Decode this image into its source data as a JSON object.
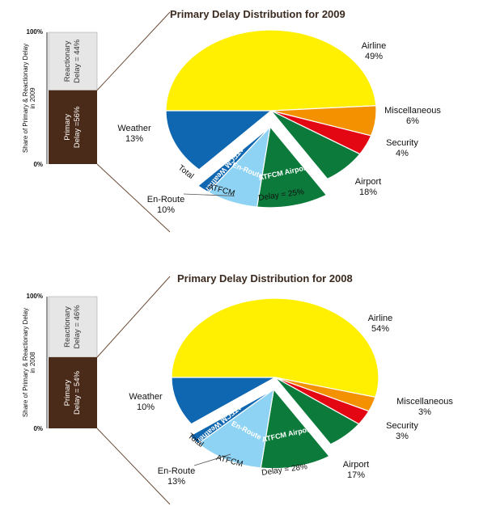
{
  "colors": {
    "airline": "#ffef00",
    "miscellaneous": "#f39100",
    "security": "#e30613",
    "airport": "#0b7a3a",
    "atfcm_airport": "#0b7a3a",
    "en_route": "#8fd3f4",
    "atfcm_weather": "#0f67b1",
    "weather": "#0f67b1",
    "primary_bar": "#4a2a18",
    "reactionary_bar": "#e6e6e6"
  },
  "chart_data": [
    {
      "type": "pie",
      "title": "Primary Delay Distribution for 2009",
      "bar": {
        "axis_label_line1": "Share of Primary & Reactionary Delay",
        "axis_label_line2": "in 2009",
        "top_tick": "100%",
        "bottom_tick": "0%",
        "reactionary_line1": "Reactionary",
        "reactionary_line2": "Delay = 44%",
        "reactionary_value": 44,
        "primary_line1": "Primary",
        "primary_line2": "Delay =56%",
        "primary_value": 56
      },
      "slices": [
        {
          "key": "airline",
          "value": 49,
          "label": "Airline",
          "pct": "49%"
        },
        {
          "key": "miscellaneous",
          "value": 6,
          "label": "Miscellaneous",
          "pct": "6%"
        },
        {
          "key": "security",
          "value": 4,
          "label": "Security",
          "pct": "4%"
        },
        {
          "key": "airport",
          "value": 7,
          "label": "Airport",
          "pct": "18%"
        },
        {
          "key": "atfcm_airport",
          "value": 11,
          "label": "ATFCM Airport"
        },
        {
          "key": "en_route",
          "value": 8,
          "label": "En-Route"
        },
        {
          "key": "atfcm_weather",
          "value": 2,
          "label": "ATFCM Weather"
        },
        {
          "key": "weather",
          "value": 13,
          "label": "Weather",
          "pct": "13%"
        }
      ],
      "en_route_outer": {
        "label": "En-Route",
        "pct": "10%"
      },
      "total_atfcm": {
        "word1": "Total",
        "word2": "ATFCM",
        "word3": "Delay = 25%"
      }
    },
    {
      "type": "pie",
      "title": "Primary Delay Distribution for 2008",
      "bar": {
        "axis_label_line1": "Share of Primary & Reactionary Delay",
        "axis_label_line2": "in 2008",
        "top_tick": "100%",
        "bottom_tick": "0%",
        "reactionary_line1": "Reactionary",
        "reactionary_line2": "Delay = 46%",
        "reactionary_value": 46,
        "primary_line1": "Primary",
        "primary_line2": "Delay = 54%",
        "primary_value": 54
      },
      "slices": [
        {
          "key": "airline",
          "value": 54,
          "label": "Airline",
          "pct": "54%"
        },
        {
          "key": "miscellaneous",
          "value": 3,
          "label": "Miscellaneous",
          "pct": "3%"
        },
        {
          "key": "security",
          "value": 3,
          "label": "Security",
          "pct": "3%"
        },
        {
          "key": "airport",
          "value": 6,
          "label": "Airport",
          "pct": "17%"
        },
        {
          "key": "atfcm_airport",
          "value": 11,
          "label": "ATFCM Airport"
        },
        {
          "key": "en_route",
          "value": 11,
          "label": "En-Route"
        },
        {
          "key": "atfcm_weather",
          "value": 2,
          "label": "ATFCM Weather"
        },
        {
          "key": "weather",
          "value": 10,
          "label": "Weather",
          "pct": "10%"
        }
      ],
      "en_route_outer": {
        "label": "En-Route",
        "pct": "13%"
      },
      "total_atfcm": {
        "word1": "Total",
        "word2": "ATFCM",
        "word3": "Delay = 28%"
      }
    }
  ]
}
